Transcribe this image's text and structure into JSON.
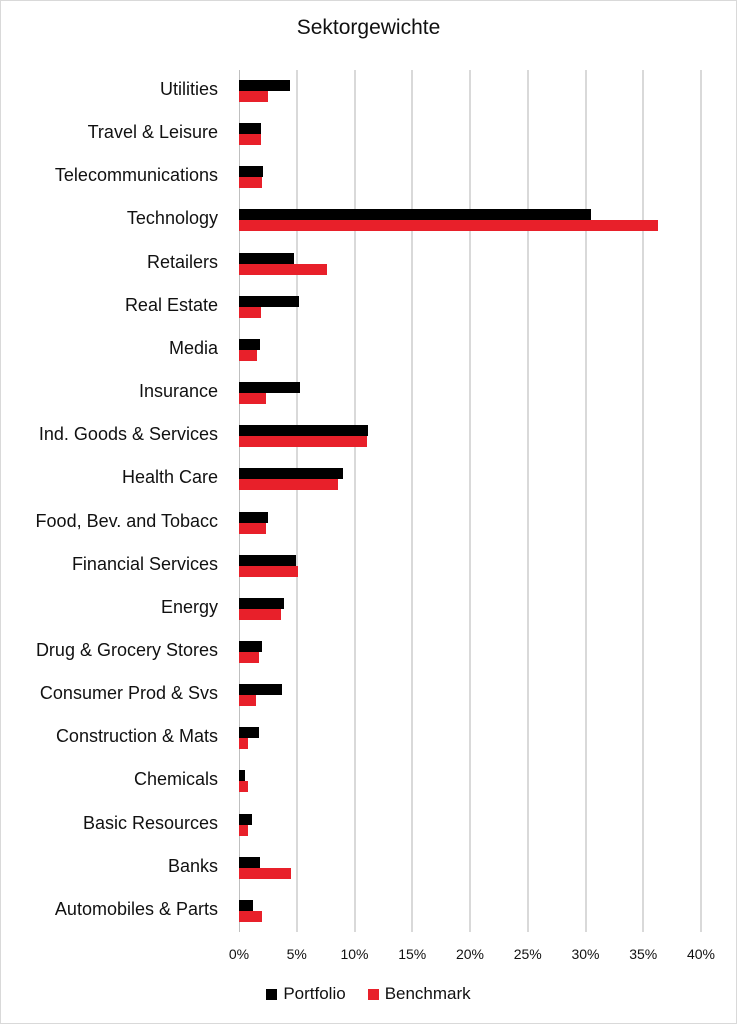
{
  "chart_data": {
    "type": "bar",
    "orientation": "horizontal",
    "title": "Sektorgewichte",
    "xlabel": "",
    "ylabel": "",
    "xlim": [
      0,
      40
    ],
    "x_ticks": [
      "0%",
      "5%",
      "10%",
      "15%",
      "20%",
      "25%",
      "30%",
      "35%",
      "40%"
    ],
    "grid": true,
    "legend_position": "bottom",
    "categories": [
      "Utilities",
      "Travel & Leisure",
      "Telecommunications",
      "Technology",
      "Retailers",
      "Real Estate",
      "Media",
      "Insurance",
      "Ind. Goods & Services",
      "Health Care",
      "Food, Bev. and Tobacc",
      "Financial Services",
      "Energy",
      "Drug & Grocery Stores",
      "Consumer Prod & Svs",
      "Construction & Mats",
      "Chemicals",
      "Basic Resources",
      "Banks",
      "Automobiles & Parts"
    ],
    "series": [
      {
        "name": "Portfolio",
        "color": "#000000",
        "values": [
          4.4,
          1.9,
          2.1,
          30.5,
          4.8,
          5.2,
          1.8,
          5.3,
          11.2,
          9.0,
          2.5,
          4.9,
          3.9,
          2.0,
          3.7,
          1.7,
          0.5,
          1.1,
          1.8,
          1.2
        ]
      },
      {
        "name": "Benchmark",
        "color": "#e8202a",
        "values": [
          2.5,
          1.9,
          2.0,
          36.3,
          7.6,
          1.9,
          1.6,
          2.3,
          11.1,
          8.6,
          2.3,
          5.1,
          3.6,
          1.7,
          1.5,
          0.8,
          0.75,
          0.8,
          4.5,
          2.0
        ]
      }
    ],
    "unit": "%"
  },
  "legend": {
    "portfolio_label": "Portfolio",
    "benchmark_label": "Benchmark"
  }
}
